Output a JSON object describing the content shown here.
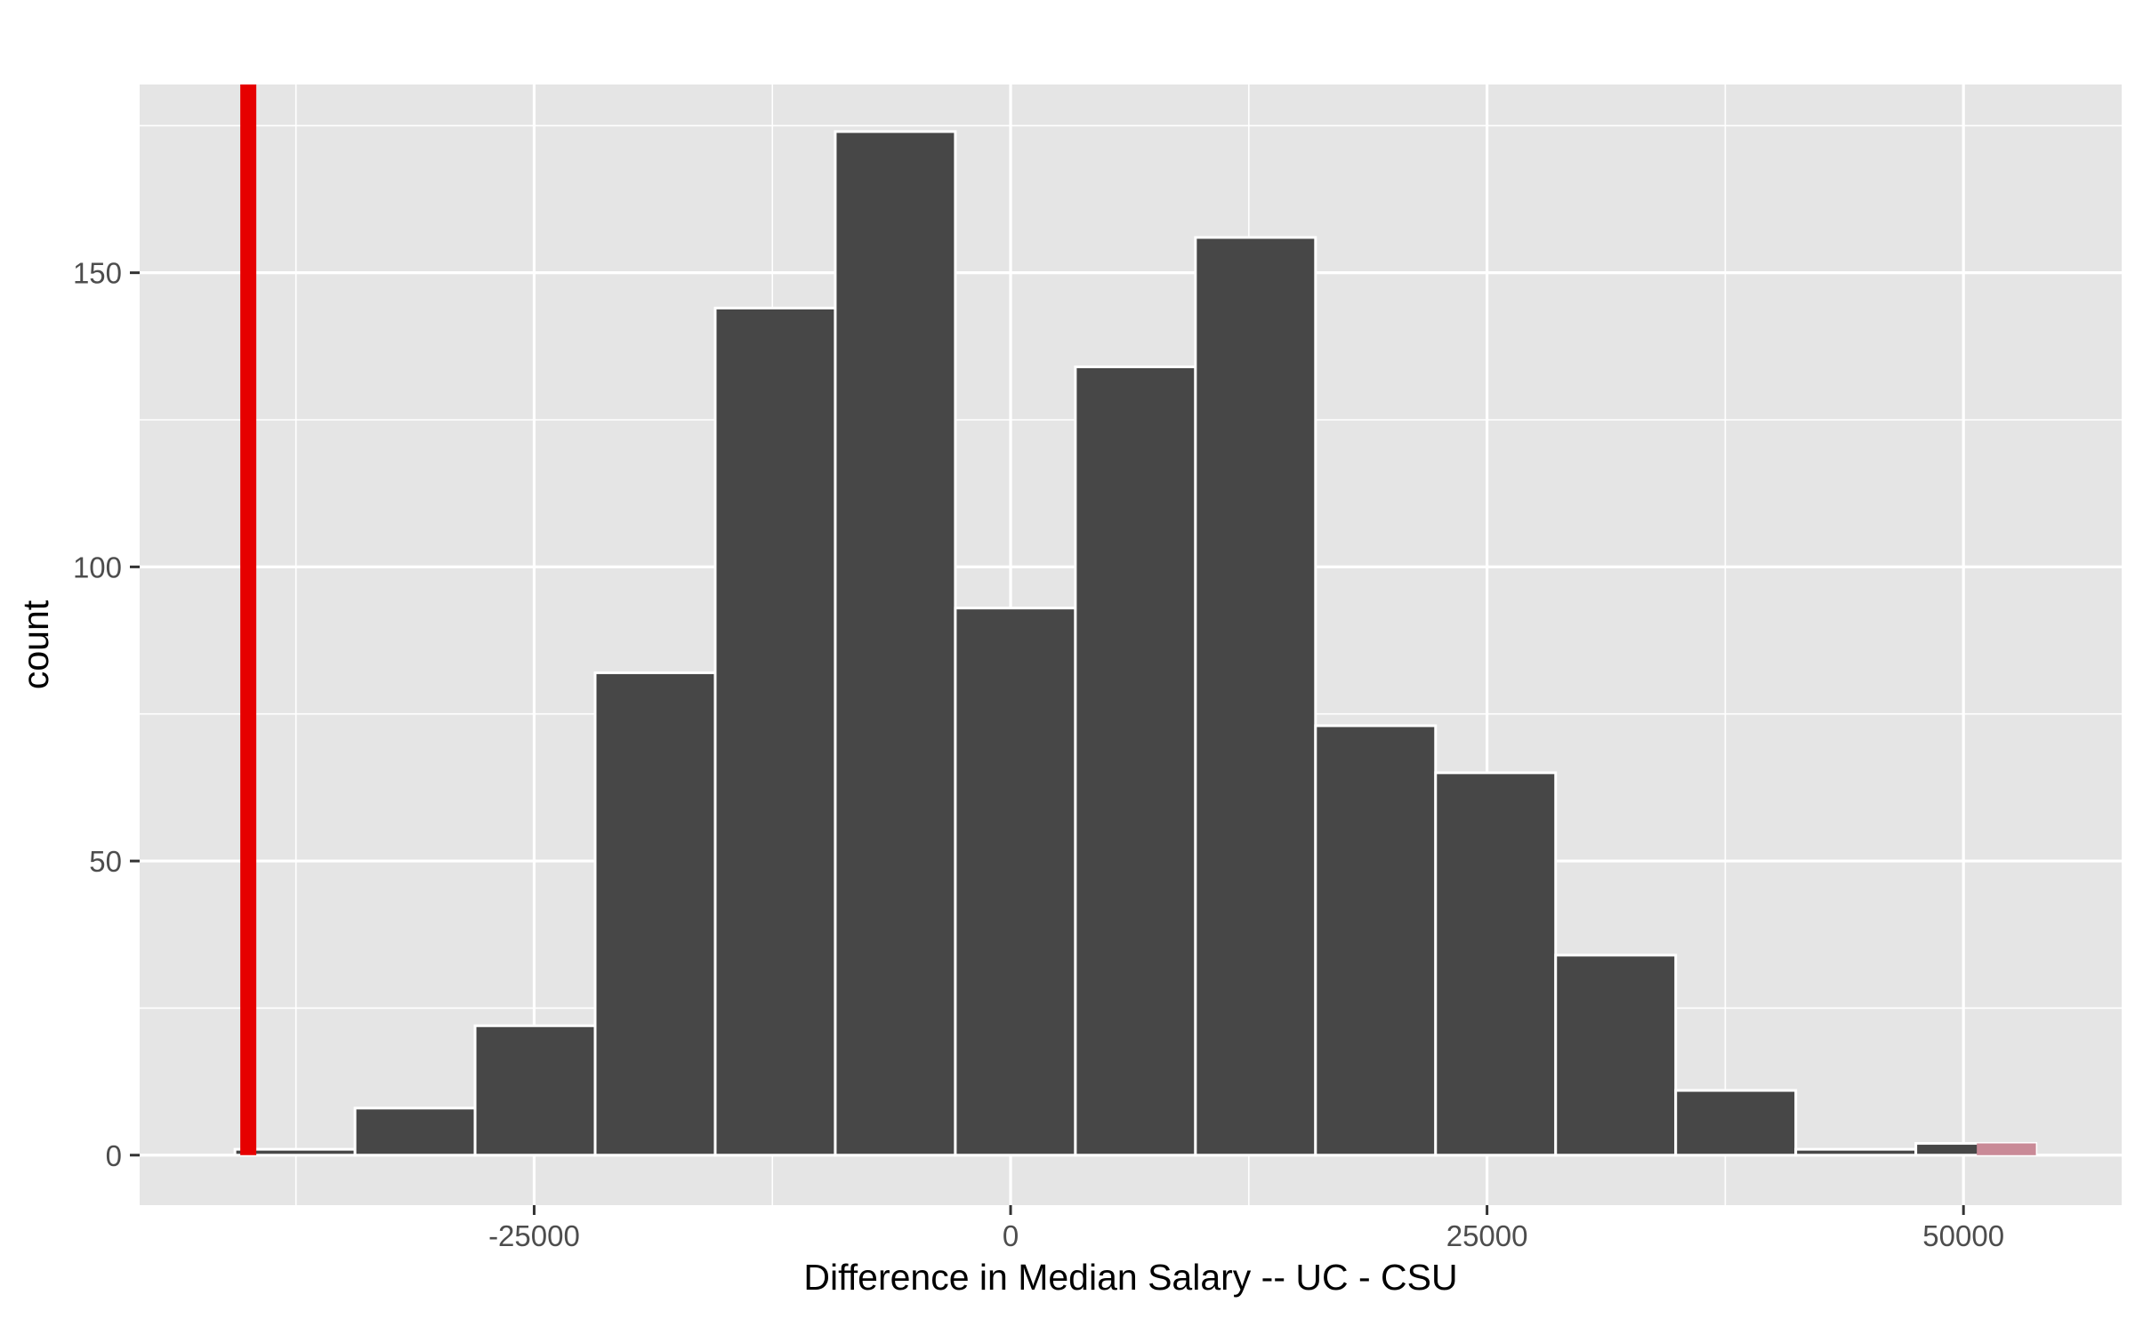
{
  "chart_data": {
    "type": "bar",
    "subtype": "histogram",
    "xlabel": "Difference in Median Salary -- UC - CSU",
    "ylabel": "count",
    "xlim": [
      -45700,
      58300
    ],
    "ylim": [
      -8.5,
      182
    ],
    "x_ticks": [
      -25000,
      0,
      25000,
      50000
    ],
    "x_tick_labels": [
      "-25000",
      "0",
      "25000",
      "50000"
    ],
    "y_ticks": [
      0,
      50,
      100,
      150
    ],
    "y_tick_labels": [
      "0",
      "50",
      "100",
      "150"
    ],
    "grid": true,
    "bin_width": 6300,
    "bins": [
      {
        "x0": -40700,
        "x1": -34400,
        "count": 1
      },
      {
        "x0": -34400,
        "x1": -28100,
        "count": 8
      },
      {
        "x0": -28100,
        "x1": -21800,
        "count": 22
      },
      {
        "x0": -21800,
        "x1": -15500,
        "count": 82
      },
      {
        "x0": -15500,
        "x1": -9200,
        "count": 144
      },
      {
        "x0": -9200,
        "x1": -2900,
        "count": 174
      },
      {
        "x0": -2900,
        "x1": 3400,
        "count": 93
      },
      {
        "x0": 3400,
        "x1": 9700,
        "count": 134
      },
      {
        "x0": 9700,
        "x1": 16000,
        "count": 156
      },
      {
        "x0": 16000,
        "x1": 22300,
        "count": 73
      },
      {
        "x0": 22300,
        "x1": 28600,
        "count": 65
      },
      {
        "x0": 28600,
        "x1": 34900,
        "count": 34
      },
      {
        "x0": 34900,
        "x1": 41200,
        "count": 11
      },
      {
        "x0": 41200,
        "x1": 47500,
        "count": 1
      },
      {
        "x0": 47500,
        "x1": 53800,
        "count": 2
      }
    ],
    "observed_stat": {
      "value": -40000,
      "color": "#e60000"
    },
    "shade": {
      "direction": "both",
      "x_from": 50700,
      "x_to": 53800,
      "color": "#c98a97"
    },
    "colors": {
      "panel": "#e5e5e5",
      "grid": "#ffffff",
      "bar_fill": "#474747",
      "bar_outline": "#ffffff"
    }
  }
}
